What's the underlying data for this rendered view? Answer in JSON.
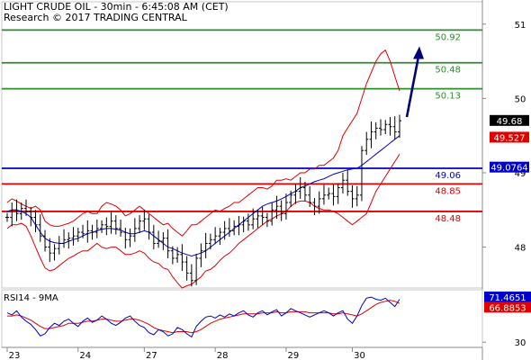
{
  "header": {
    "line1": "LIGHT CRUDE OIL - 30min - 6:45:08 AM (CET)",
    "line2": "Research © 2017 TRADING CENTRAL"
  },
  "colors": {
    "price": "#000000",
    "bollinger": "#e00000",
    "moving_average": "#0000c8",
    "resistance": "#2e8b2e",
    "support": "#e00000",
    "pivot": "#0000c8",
    "arrow": "#00007a",
    "rsi_line": "#0000c8",
    "rsi_signal": "#e00000"
  },
  "chart_data": [
    {
      "type": "line",
      "subtype": "ohlc-bars",
      "title": "LIGHT CRUDE OIL - 30min - 6:45:08 AM (CET)",
      "x_ticks": [
        "23",
        "24",
        "27",
        "28",
        "29",
        "30"
      ],
      "y_ticks": [
        "48",
        "49",
        "50",
        "51"
      ],
      "ylim": [
        47.45,
        51.3
      ],
      "grid": false,
      "indicators": [
        "Bollinger Bands",
        "Moving Average"
      ],
      "levels": [
        {
          "value": 50.92,
          "label": "50.92",
          "kind": "resistance"
        },
        {
          "value": 50.48,
          "label": "50.48",
          "kind": "resistance"
        },
        {
          "value": 50.13,
          "label": "50.13",
          "kind": "resistance"
        },
        {
          "value": 49.06,
          "label": "49.06",
          "kind": "pivot"
        },
        {
          "value": 48.85,
          "label": "48.85",
          "kind": "support"
        },
        {
          "value": 48.48,
          "label": "48.48",
          "kind": "support"
        }
      ],
      "price_badges": [
        {
          "value": 49.68,
          "label": "49.68"
        },
        {
          "value": 49.527,
          "label": "49.527"
        },
        {
          "value": 49.0764,
          "label": "49.0764"
        }
      ],
      "close": [
        48.4,
        48.5,
        48.45,
        48.52,
        48.48,
        48.4,
        48.3,
        48.15,
        48.0,
        47.92,
        47.98,
        48.05,
        48.1,
        48.12,
        48.15,
        48.2,
        48.18,
        48.22,
        48.2,
        48.25,
        48.3,
        48.28,
        48.35,
        48.25,
        48.2,
        48.1,
        48.15,
        48.25,
        48.35,
        48.38,
        48.2,
        48.05,
        48.08,
        48.12,
        47.95,
        47.85,
        47.9,
        47.8,
        47.65,
        47.55,
        47.85,
        47.95,
        48.05,
        48.1,
        48.15,
        48.2,
        48.25,
        48.22,
        48.28,
        48.3,
        48.35,
        48.3,
        48.38,
        48.42,
        48.4,
        48.35,
        48.5,
        48.55,
        48.45,
        48.6,
        48.7,
        48.75,
        48.8,
        48.7,
        48.6,
        48.55,
        48.65,
        48.7,
        48.72,
        48.68,
        48.8,
        48.9,
        48.75,
        48.65,
        48.7,
        49.3,
        49.45,
        49.55,
        49.6,
        49.58,
        49.65,
        49.62,
        49.55,
        49.7
      ],
      "bollinger_upper": [
        48.6,
        48.65,
        48.62,
        48.58,
        48.55,
        48.52,
        48.55,
        48.5,
        48.35,
        48.3,
        48.28,
        48.28,
        48.3,
        48.32,
        48.35,
        48.4,
        48.45,
        48.48,
        48.45,
        48.45,
        48.55,
        48.6,
        48.58,
        48.55,
        48.5,
        48.42,
        48.45,
        48.5,
        48.55,
        48.5,
        48.45,
        48.4,
        48.35,
        48.3,
        48.32,
        48.25,
        48.2,
        48.15,
        48.22,
        48.3,
        48.3,
        48.35,
        48.4,
        48.45,
        48.5,
        48.48,
        48.52,
        48.55,
        48.6,
        48.6,
        48.65,
        48.7,
        48.75,
        48.8,
        48.8,
        48.78,
        48.82,
        48.9,
        48.9,
        48.92,
        48.9,
        48.95,
        49.0,
        49.0,
        49.05,
        49.05,
        49.1,
        49.1,
        49.15,
        49.2,
        49.3,
        49.5,
        49.6,
        49.7,
        49.8,
        50.0,
        50.2,
        50.35,
        50.5,
        50.6,
        50.65,
        50.5,
        50.3,
        50.1
      ],
      "bollinger_lower": [
        48.25,
        48.3,
        48.3,
        48.32,
        48.28,
        48.15,
        48.0,
        47.85,
        47.72,
        47.68,
        47.7,
        47.75,
        47.8,
        47.85,
        47.88,
        47.92,
        47.95,
        47.95,
        48.0,
        48.05,
        48.0,
        47.98,
        48.0,
        48.0,
        47.95,
        47.9,
        47.9,
        47.92,
        47.95,
        47.92,
        47.85,
        47.8,
        47.78,
        47.72,
        47.7,
        47.6,
        47.52,
        47.45,
        47.48,
        47.5,
        47.55,
        47.6,
        47.68,
        47.7,
        47.75,
        47.82,
        47.88,
        47.92,
        47.98,
        48.05,
        48.1,
        48.15,
        48.2,
        48.25,
        48.3,
        48.35,
        48.38,
        48.42,
        48.45,
        48.48,
        48.55,
        48.6,
        48.62,
        48.62,
        48.6,
        48.55,
        48.52,
        48.5,
        48.5,
        48.48,
        48.45,
        48.4,
        48.35,
        48.3,
        48.35,
        48.4,
        48.45,
        48.6,
        48.75,
        48.85,
        48.95,
        49.05,
        49.15,
        49.25
      ],
      "moving_average": [
        48.48,
        48.5,
        48.5,
        48.48,
        48.45,
        48.4,
        48.3,
        48.2,
        48.12,
        48.08,
        48.06,
        48.05,
        48.05,
        48.08,
        48.1,
        48.12,
        48.15,
        48.18,
        48.2,
        48.22,
        48.24,
        48.25,
        48.25,
        48.24,
        48.23,
        48.2,
        48.18,
        48.18,
        48.2,
        48.22,
        48.2,
        48.15,
        48.1,
        48.05,
        48.0,
        47.98,
        47.95,
        47.92,
        47.9,
        47.88,
        47.9,
        47.92,
        47.95,
        48.0,
        48.05,
        48.1,
        48.15,
        48.2,
        48.25,
        48.3,
        48.35,
        48.4,
        48.45,
        48.5,
        48.55,
        48.58,
        48.6,
        48.62,
        48.65,
        48.68,
        48.72,
        48.75,
        48.8,
        48.82,
        48.85,
        48.88,
        48.9,
        48.92,
        48.95,
        48.98,
        49.0,
        49.02,
        49.04,
        49.05,
        49.06,
        49.1,
        49.15,
        49.2,
        49.25,
        49.3,
        49.35,
        49.4,
        49.45,
        49.5
      ],
      "projection": {
        "from": 49.75,
        "to": 50.7
      }
    },
    {
      "type": "line",
      "title": "RSI14 - 9MA",
      "y_ticks": [
        "30"
      ],
      "ylim": [
        25,
        80
      ],
      "badges": [
        {
          "value": 71.4651,
          "label": "71.4651"
        },
        {
          "value": 66.8853,
          "label": "66.8853"
        }
      ],
      "series": [
        {
          "values": [
            58,
            56,
            60,
            54,
            50,
            47,
            42,
            36,
            38,
            44,
            48,
            46,
            50,
            52,
            48,
            45,
            50,
            53,
            49,
            51,
            55,
            52,
            48,
            46,
            49,
            53,
            55,
            50,
            46,
            44,
            39,
            37,
            42,
            40,
            36,
            38,
            44,
            42,
            38,
            35,
            45,
            50,
            54,
            55,
            53,
            56,
            54,
            57,
            55,
            58,
            60,
            56,
            54,
            58,
            60,
            56,
            59,
            61,
            55,
            58,
            62,
            60,
            58,
            56,
            54,
            56,
            58,
            60,
            58,
            55,
            58,
            60,
            52,
            48,
            55,
            65,
            72,
            73,
            71,
            70,
            72,
            68,
            64,
            71
          ]
        },
        {
          "values": [
            55,
            55,
            56,
            55,
            53,
            51,
            48,
            45,
            43,
            43,
            44,
            45,
            46,
            48,
            48,
            48,
            49,
            50,
            50,
            51,
            52,
            52,
            51,
            50,
            50,
            51,
            52,
            52,
            51,
            49,
            47,
            44,
            42,
            41,
            40,
            39,
            40,
            40,
            40,
            39,
            40,
            42,
            45,
            48,
            50,
            52,
            53,
            54,
            55,
            56,
            57,
            57,
            57,
            57,
            58,
            58,
            58,
            59,
            58,
            58,
            59,
            59,
            59,
            59,
            58,
            58,
            58,
            58,
            58,
            57,
            57,
            58,
            57,
            56,
            55,
            57,
            60,
            63,
            66,
            68,
            69,
            70,
            69,
            67
          ]
        }
      ]
    }
  ]
}
